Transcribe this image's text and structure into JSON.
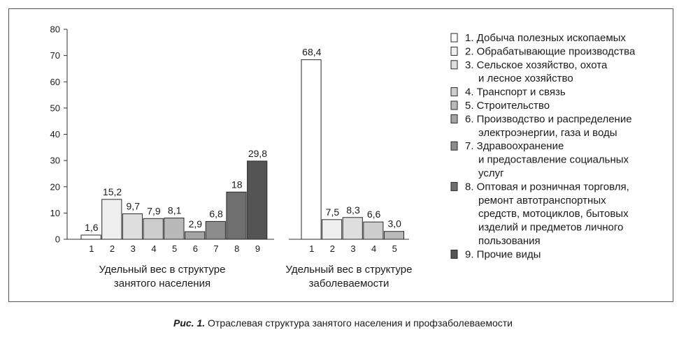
{
  "chart_data": [
    {
      "type": "bar",
      "categories": [
        "1",
        "2",
        "3",
        "4",
        "5",
        "6",
        "7",
        "8",
        "9"
      ],
      "values": [
        1.6,
        15.2,
        9.7,
        7.9,
        8.1,
        2.9,
        6.8,
        18,
        29.8
      ],
      "value_labels": [
        "1,6",
        "15,2",
        "9,7",
        "7,9",
        "8,1",
        "2,9",
        "6,8",
        "18",
        "29,8"
      ],
      "xlabel": "Удельный вес в структуре занятого населения",
      "xlabel_lines": [
        "Удельный вес в структуре",
        "занятого населения"
      ],
      "ylim": [
        0,
        80
      ],
      "yticks": [
        0,
        10,
        20,
        30,
        40,
        50,
        60,
        70,
        80
      ],
      "grid": false
    },
    {
      "type": "bar",
      "categories": [
        "1",
        "2",
        "3",
        "4",
        "5"
      ],
      "values": [
        68.4,
        7.5,
        8.3,
        6.6,
        3.0
      ],
      "value_labels": [
        "68,4",
        "7,5",
        "8,3",
        "6,6",
        "3,0"
      ],
      "xlabel": "Удельный вес в структуре заболеваемости",
      "xlabel_lines": [
        "Удельный вес в структуре",
        "заболеваемости"
      ],
      "ylim": [
        0,
        80
      ],
      "grid": false
    }
  ],
  "legend": {
    "placement": "right",
    "items": [
      {
        "lines": [
          "1. Добыча полезных ископаемых"
        ],
        "color": "#ffffff"
      },
      {
        "lines": [
          "2. Обрабатывающие производства"
        ],
        "color": "#efefef"
      },
      {
        "lines": [
          "3. Сельское хозяйство, охота",
          "и лесное хозяйство"
        ],
        "color": "#dedede"
      },
      {
        "lines": [
          "4. Транспорт и связь"
        ],
        "color": "#cdcdcd"
      },
      {
        "lines": [
          "5. Строительство"
        ],
        "color": "#b9b9b9"
      },
      {
        "lines": [
          "6. Производство и распределение",
          "электроэнергии, газа и воды"
        ],
        "color": "#a4a4a4"
      },
      {
        "lines": [
          "7. Здравоохранение",
          "и предоставление социальных",
          "услуг"
        ],
        "color": "#8c8c8c"
      },
      {
        "lines": [
          "8. Оптовая и розничная торговля,",
          "ремонт автотранспортных",
          "средств, мотоциклов, бытовых",
          "изделий и предметов личного",
          "пользования"
        ],
        "color": "#6f6f6f"
      },
      {
        "lines": [
          "9. Прочие виды"
        ],
        "color": "#545454"
      }
    ]
  },
  "caption": {
    "prefix": "Рис. 1.",
    "text": " Отраслевая структура занятого населения и профзаболеваемости"
  }
}
